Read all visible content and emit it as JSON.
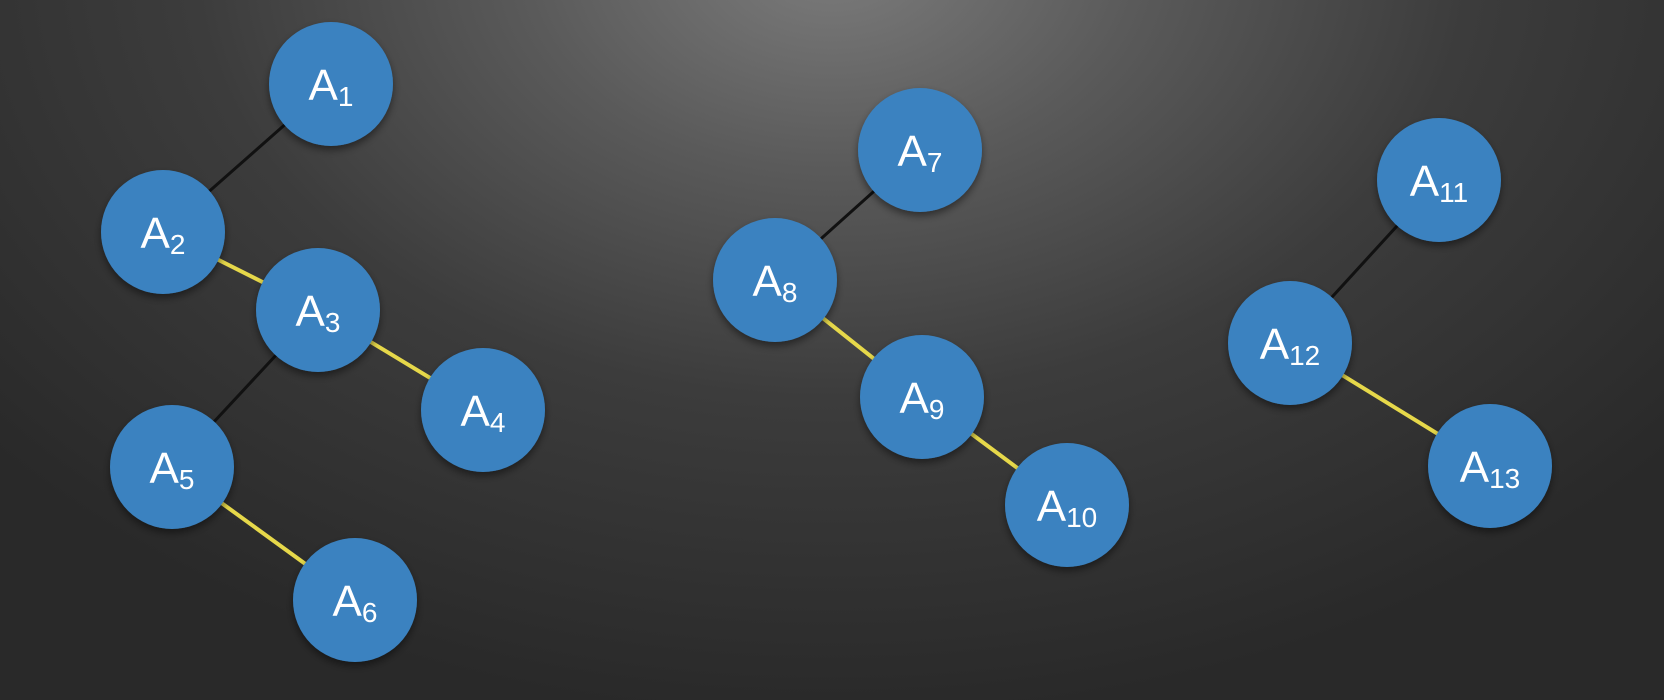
{
  "diagram": {
    "colors": {
      "node_fill": "#3a82c0",
      "node_text": "#ffffff",
      "edge_dark": "#111111",
      "edge_highlight": "#e6d84a"
    },
    "nodes": [
      {
        "id": "A1",
        "letter": "A",
        "sub": "1"
      },
      {
        "id": "A2",
        "letter": "A",
        "sub": "2"
      },
      {
        "id": "A3",
        "letter": "A",
        "sub": "3"
      },
      {
        "id": "A4",
        "letter": "A",
        "sub": "4"
      },
      {
        "id": "A5",
        "letter": "A",
        "sub": "5"
      },
      {
        "id": "A6",
        "letter": "A",
        "sub": "6"
      },
      {
        "id": "A7",
        "letter": "A",
        "sub": "7"
      },
      {
        "id": "A8",
        "letter": "A",
        "sub": "8"
      },
      {
        "id": "A9",
        "letter": "A",
        "sub": "9"
      },
      {
        "id": "A10",
        "letter": "A",
        "sub": "10"
      },
      {
        "id": "A11",
        "letter": "A",
        "sub": "11"
      },
      {
        "id": "A12",
        "letter": "A",
        "sub": "12"
      },
      {
        "id": "A13",
        "letter": "A",
        "sub": "13"
      }
    ],
    "edges": [
      {
        "from": "A1",
        "to": "A2",
        "style": "dark"
      },
      {
        "from": "A2",
        "to": "A3",
        "style": "highlight"
      },
      {
        "from": "A3",
        "to": "A4",
        "style": "highlight"
      },
      {
        "from": "A3",
        "to": "A5",
        "style": "dark"
      },
      {
        "from": "A5",
        "to": "A6",
        "style": "highlight"
      },
      {
        "from": "A7",
        "to": "A8",
        "style": "dark"
      },
      {
        "from": "A8",
        "to": "A9",
        "style": "highlight"
      },
      {
        "from": "A9",
        "to": "A10",
        "style": "highlight"
      },
      {
        "from": "A11",
        "to": "A12",
        "style": "dark"
      },
      {
        "from": "A12",
        "to": "A13",
        "style": "highlight"
      }
    ]
  }
}
